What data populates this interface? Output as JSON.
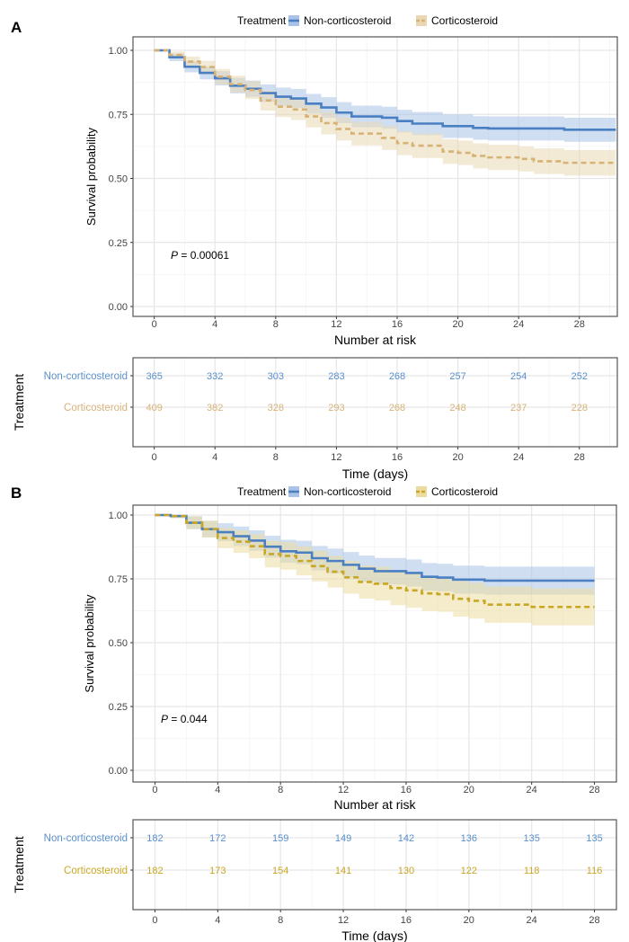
{
  "chart_data": [
    {
      "panel_label": "A",
      "type": "line",
      "subtype": "kaplan-meier step with confidence bands",
      "legend": {
        "title": "Treatment",
        "position": "top",
        "entries": [
          "Non-corticosteroid",
          "Corticosteroid"
        ]
      },
      "ylabel": "Survival probability",
      "xlabel": "",
      "ylim": [
        0,
        1
      ],
      "xlim": [
        -1.4,
        30.5
      ],
      "y_ticks": [
        "0.00",
        "0.25",
        "0.50",
        "0.75",
        "1.00"
      ],
      "x_ticks": [
        "0",
        "4",
        "8",
        "12",
        "16",
        "20",
        "24",
        "28"
      ],
      "grid": true,
      "annotation": {
        "p_label": "P",
        "p_text": " = 0.00061"
      },
      "series": [
        {
          "name": "Non-corticosteroid",
          "color": "#4a7fc1",
          "band_color": "#a9c3e8",
          "dashed": false,
          "end_time": 30.4,
          "time": [
            0,
            1,
            2,
            3,
            4,
            5,
            6,
            7,
            8,
            9,
            10,
            11,
            12,
            13,
            15,
            16,
            17,
            19,
            21,
            22,
            27
          ],
          "survival": [
            1,
            0.973,
            0.936,
            0.912,
            0.891,
            0.862,
            0.85,
            0.833,
            0.819,
            0.812,
            0.792,
            0.777,
            0.757,
            0.742,
            0.737,
            0.724,
            0.714,
            0.704,
            0.697,
            0.695,
            0.69
          ],
          "ci_lower": [
            1,
            0.958,
            0.914,
            0.887,
            0.863,
            0.832,
            0.818,
            0.799,
            0.783,
            0.775,
            0.754,
            0.737,
            0.716,
            0.7,
            0.694,
            0.68,
            0.669,
            0.658,
            0.651,
            0.648,
            0.643
          ],
          "ci_upper": [
            1,
            0.988,
            0.958,
            0.937,
            0.919,
            0.892,
            0.882,
            0.867,
            0.855,
            0.849,
            0.83,
            0.817,
            0.798,
            0.784,
            0.78,
            0.768,
            0.759,
            0.75,
            0.743,
            0.742,
            0.737
          ]
        },
        {
          "name": "Corticosteroid",
          "color": "#d6b274",
          "band_color": "#ead8b4",
          "dashed": true,
          "end_time": 30.4,
          "time": [
            0,
            1,
            2,
            3,
            4,
            5,
            6,
            7,
            8,
            9,
            10,
            11,
            12,
            13,
            15,
            16,
            17,
            19,
            20,
            21,
            22,
            24,
            25,
            27
          ],
          "survival": [
            1,
            0.982,
            0.956,
            0.935,
            0.897,
            0.868,
            0.845,
            0.804,
            0.78,
            0.769,
            0.742,
            0.716,
            0.693,
            0.675,
            0.658,
            0.638,
            0.628,
            0.605,
            0.6,
            0.588,
            0.582,
            0.576,
            0.567,
            0.561
          ],
          "ci_lower": [
            1,
            0.969,
            0.936,
            0.911,
            0.867,
            0.835,
            0.81,
            0.765,
            0.74,
            0.728,
            0.699,
            0.672,
            0.648,
            0.629,
            0.611,
            0.591,
            0.58,
            0.557,
            0.552,
            0.539,
            0.533,
            0.527,
            0.517,
            0.511
          ],
          "ci_upper": [
            1,
            0.995,
            0.976,
            0.959,
            0.927,
            0.901,
            0.88,
            0.843,
            0.82,
            0.81,
            0.785,
            0.76,
            0.738,
            0.721,
            0.705,
            0.685,
            0.676,
            0.653,
            0.648,
            0.637,
            0.631,
            0.625,
            0.617,
            0.611
          ]
        }
      ],
      "risk_table": {
        "title": "Number at risk",
        "ylabel": "Treatment",
        "xlabel": "Time (days)",
        "times": [
          0,
          4,
          8,
          12,
          16,
          20,
          24,
          28
        ],
        "rows": [
          {
            "label": "Non-corticosteroid",
            "color": "#5a8fcc",
            "values": [
              "365",
              "332",
              "303",
              "283",
              "268",
              "257",
              "254",
              "252"
            ]
          },
          {
            "label": "Corticosteroid",
            "color": "#d7b27a",
            "values": [
              "409",
              "382",
              "328",
              "293",
              "268",
              "248",
              "237",
              "228"
            ]
          }
        ]
      }
    },
    {
      "panel_label": "B",
      "type": "line",
      "subtype": "kaplan-meier step with confidence bands",
      "legend": {
        "title": "Treatment",
        "position": "top",
        "entries": [
          "Non-corticosteroid",
          "Corticosteroid"
        ]
      },
      "ylabel": "Survival probability",
      "xlabel": "",
      "ylim": [
        0,
        1
      ],
      "xlim": [
        -1.4,
        29.4
      ],
      "y_ticks": [
        "0.00",
        "0.25",
        "0.50",
        "0.75",
        "1.00"
      ],
      "x_ticks": [
        "0",
        "4",
        "8",
        "12",
        "16",
        "20",
        "24",
        "28"
      ],
      "grid": true,
      "annotation": {
        "p_label": "P",
        "p_text": " = 0.044"
      },
      "series": [
        {
          "name": "Non-corticosteroid",
          "color": "#4a7fc1",
          "band_color": "#a9c3e8",
          "dashed": false,
          "end_time": 28,
          "time": [
            0,
            1,
            2,
            3,
            4,
            5,
            6,
            7,
            8,
            9,
            10,
            11,
            12,
            13,
            14,
            16,
            17,
            18,
            19,
            21
          ],
          "survival": [
            1,
            0.996,
            0.97,
            0.945,
            0.933,
            0.917,
            0.9,
            0.876,
            0.858,
            0.853,
            0.831,
            0.82,
            0.805,
            0.79,
            0.78,
            0.773,
            0.758,
            0.755,
            0.747,
            0.743
          ],
          "ci_lower": [
            1,
            0.988,
            0.945,
            0.913,
            0.898,
            0.879,
            0.86,
            0.833,
            0.813,
            0.807,
            0.783,
            0.771,
            0.755,
            0.739,
            0.728,
            0.72,
            0.704,
            0.701,
            0.692,
            0.688
          ],
          "ci_upper": [
            1,
            1,
            0.995,
            0.977,
            0.968,
            0.955,
            0.94,
            0.919,
            0.903,
            0.899,
            0.879,
            0.869,
            0.855,
            0.841,
            0.832,
            0.826,
            0.812,
            0.809,
            0.802,
            0.798
          ]
        },
        {
          "name": "Corticosteroid",
          "color": "#c9a623",
          "band_color": "#ecdca0",
          "dashed": true,
          "end_time": 28,
          "time": [
            0,
            1,
            2,
            3,
            4,
            5,
            6,
            7,
            8,
            9,
            10,
            11,
            12,
            13,
            14,
            15,
            16,
            17,
            18,
            19,
            20,
            21,
            24
          ],
          "survival": [
            1,
            0.996,
            0.97,
            0.945,
            0.91,
            0.896,
            0.878,
            0.847,
            0.84,
            0.82,
            0.8,
            0.778,
            0.756,
            0.738,
            0.731,
            0.714,
            0.705,
            0.693,
            0.69,
            0.672,
            0.664,
            0.649,
            0.64
          ],
          "ci_lower": [
            1,
            0.988,
            0.945,
            0.912,
            0.87,
            0.852,
            0.831,
            0.795,
            0.786,
            0.763,
            0.74,
            0.716,
            0.692,
            0.673,
            0.665,
            0.647,
            0.637,
            0.624,
            0.621,
            0.602,
            0.594,
            0.578,
            0.568
          ],
          "ci_upper": [
            1,
            1,
            0.995,
            0.978,
            0.95,
            0.94,
            0.925,
            0.899,
            0.894,
            0.877,
            0.86,
            0.84,
            0.82,
            0.803,
            0.797,
            0.781,
            0.773,
            0.762,
            0.759,
            0.742,
            0.734,
            0.72,
            0.712
          ]
        }
      ],
      "risk_table": {
        "title": "Number at risk",
        "ylabel": "Treatment",
        "xlabel": "Time (days)",
        "times": [
          0,
          4,
          8,
          12,
          16,
          20,
          24,
          28
        ],
        "rows": [
          {
            "label": "Non-corticosteroid",
            "color": "#5a8fcc",
            "values": [
              "182",
              "172",
              "159",
              "149",
              "142",
              "136",
              "135",
              "135"
            ]
          },
          {
            "label": "Corticosteroid",
            "color": "#c9a623",
            "values": [
              "182",
              "173",
              "154",
              "141",
              "130",
              "122",
              "118",
              "116"
            ]
          }
        ]
      }
    }
  ]
}
